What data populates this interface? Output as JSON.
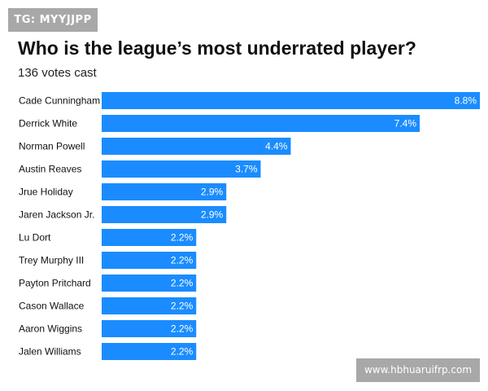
{
  "tag_label": "TG: MYYJJPP",
  "watermark": "www.hbhuaruifrp.com",
  "colors": {
    "bar": "#1a8cff",
    "bar_label": "#ffffff",
    "category_text": "#111111"
  },
  "chart_data": {
    "type": "bar",
    "orientation": "horizontal",
    "title": "Who is the league’s most underrated player?",
    "subtitle": "136 votes cast",
    "xlabel": "",
    "ylabel": "",
    "xlim": [
      0,
      8.8
    ],
    "grid": false,
    "categories": [
      "Cade Cunningham",
      "Derrick White",
      "Norman Powell",
      "Austin Reaves",
      "Jrue Holiday",
      "Jaren Jackson Jr.",
      "Lu Dort",
      "Trey Murphy III",
      "Payton Pritchard",
      "Cason Wallace",
      "Aaron Wiggins",
      "Jalen Williams"
    ],
    "values": [
      8.8,
      7.4,
      4.4,
      3.7,
      2.9,
      2.9,
      2.2,
      2.2,
      2.2,
      2.2,
      2.2,
      2.2
    ],
    "value_labels": [
      "8.8%",
      "7.4%",
      "4.4%",
      "3.7%",
      "2.9%",
      "2.9%",
      "2.2%",
      "2.2%",
      "2.2%",
      "2.2%",
      "2.2%",
      "2.2%"
    ]
  }
}
